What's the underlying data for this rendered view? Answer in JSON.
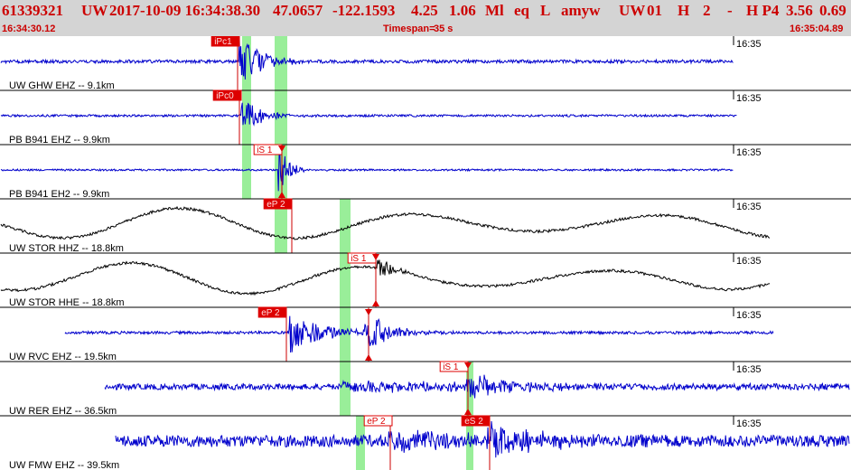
{
  "header": {
    "event_id": "61339321",
    "network": "UW",
    "datetime": "2017-10-09 16:34:38.30",
    "lat": "47.0657",
    "lon": "-122.1593",
    "depth": "4.25",
    "magnitude": "1.06",
    "mag_type": "Ml",
    "event_type": "eq",
    "event_flag": "L",
    "analyst": "amyw",
    "source": "UW",
    "version": "01",
    "gtype": "H",
    "count": "2",
    "dash": "-",
    "solution": "H P4",
    "rms": "3.56",
    "err": "0.69",
    "start_time": "16:34:30.12",
    "timespan_label": "Timespan=",
    "timespan_value": "35 s",
    "end_time": "16:35:04.89"
  },
  "time_tick_label": "16:35",
  "colors": {
    "header_bg": "#d4d4d4",
    "header_text": "#cc0000",
    "trace_short_period": "#0000cc",
    "trace_broadband": "#000000",
    "pick_flag": "#dd0000",
    "pick_line": "#cc0000",
    "phase_band": "#99ee99",
    "divider": "#000000"
  },
  "channels": [
    {
      "label": "UW GHW EHZ -- 9.1km",
      "trace_kind": "short-period",
      "picks": [
        "iPc1"
      ]
    },
    {
      "label": "PB B941 EHZ -- 9.9km",
      "trace_kind": "short-period",
      "picks": [
        "iPc0"
      ]
    },
    {
      "label": "PB B941 EH2 -- 9.9km",
      "trace_kind": "short-period",
      "picks": [
        "iS 1"
      ]
    },
    {
      "label": "UW STOR HHZ -- 18.8km",
      "trace_kind": "broadband",
      "picks": [
        "eP 2"
      ]
    },
    {
      "label": "UW STOR HHE -- 18.8km",
      "trace_kind": "broadband",
      "picks": [
        "iS 1"
      ]
    },
    {
      "label": "UW RVC EHZ -- 19.5km",
      "trace_kind": "short-period",
      "picks": [
        "eP 2"
      ]
    },
    {
      "label": "UW RER EHZ -- 36.5km",
      "trace_kind": "short-period",
      "picks": [
        "iS 1"
      ]
    },
    {
      "label": "UW FMW EHZ -- 39.5km",
      "trace_kind": "short-period",
      "picks": [
        "eP 2",
        "eS 2"
      ]
    }
  ]
}
